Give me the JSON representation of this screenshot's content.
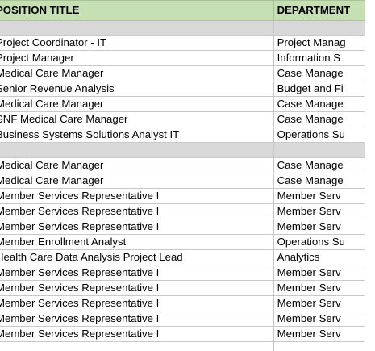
{
  "headers": {
    "col1": "POSITION TITLE",
    "col2": "DEPARTMENT"
  },
  "rows": [
    {
      "type": "separator",
      "title": "",
      "dept": ""
    },
    {
      "type": "data",
      "title": "Project Coordinator - IT",
      "dept": "Project Manag"
    },
    {
      "type": "data",
      "title": "Project Manager",
      "dept": "Information S"
    },
    {
      "type": "data",
      "title": "Medical Care Manager",
      "dept": " Case Manage"
    },
    {
      "type": "data",
      "title": "Senior Revenue Analysis",
      "dept": "Budget and Fi"
    },
    {
      "type": "data",
      "title": "Medical Care Manager",
      "dept": " Case Manage"
    },
    {
      "type": "data",
      "title": "SNF Medical Care Manager",
      "dept": "Case Manage"
    },
    {
      "type": "data",
      "title": "Business Systems Solutions Analyst IT",
      "dept": "Operations Su"
    },
    {
      "type": "separator",
      "title": "",
      "dept": ""
    },
    {
      "type": "data",
      "title": "Medical Care Manager",
      "dept": "Case Manage"
    },
    {
      "type": "data",
      "title": "Medical Care Manager",
      "dept": "Case Manage"
    },
    {
      "type": "data",
      "title": "Member Services Representative I",
      "dept": "Member Serv"
    },
    {
      "type": "data",
      "title": "Member Services Representative I",
      "dept": "Member Serv"
    },
    {
      "type": "data",
      "title": "Member Services Representative I",
      "dept": "Member Serv"
    },
    {
      "type": "data",
      "title": "Member Enrollment Analyst",
      "dept": "Operations Su"
    },
    {
      "type": "data",
      "title": "Health Care Data Analysis Project Lead",
      "dept": "Analytics"
    },
    {
      "type": "data",
      "title": "Member Services Representative I",
      "dept": "Member Serv"
    },
    {
      "type": "data",
      "title": "Member Services Representative I",
      "dept": "Member Serv"
    },
    {
      "type": "data",
      "title": "Member Services Representative I",
      "dept": "Member Serv"
    },
    {
      "type": "data",
      "title": "Member Services Representative I",
      "dept": "Member Serv"
    },
    {
      "type": "data",
      "title": "Member Services Representative I",
      "dept": "Member Serv"
    },
    {
      "type": "data",
      "title": "",
      "dept": ""
    }
  ]
}
